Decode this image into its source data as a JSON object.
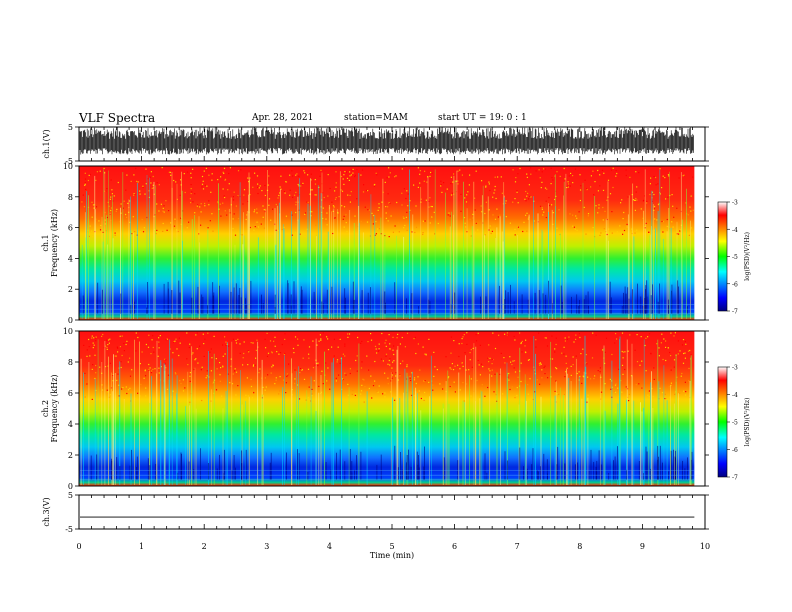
{
  "header": {
    "title": "VLF Spectra",
    "date": "Apr. 28, 2021",
    "station": "station=MAM",
    "start": "start UT =  19: 0  : 1"
  },
  "chart_data": [
    {
      "type": "line",
      "name": "ch1-waveform",
      "ylabel": "ch.1(V)",
      "ylim": [
        -5,
        5
      ],
      "yticks": [
        "5",
        "-5"
      ],
      "xlim": [
        0,
        10
      ],
      "data_end_min": 9.83,
      "amplitude": "noise spanning approx. -3 to 5 V"
    },
    {
      "type": "heatmap",
      "name": "ch1-spectrogram",
      "ylabel_top": "ch.1",
      "ylabel": "Frequency (kHz)",
      "ylim": [
        0,
        10
      ],
      "yticks": [
        "0",
        "2",
        "4",
        "6",
        "8",
        "10"
      ],
      "xlim": [
        0,
        10
      ],
      "data_end_min": 9.83,
      "colorbar": {
        "label": "log(PSD)(V²/Hz)",
        "range": [
          -7,
          -3
        ],
        "ticks": [
          "-3",
          "-4",
          "-5",
          "-6",
          "-7"
        ]
      }
    },
    {
      "type": "heatmap",
      "name": "ch2-spectrogram",
      "ylabel_top": "ch.2",
      "ylabel": "Frequency (kHz)",
      "ylim": [
        0,
        10
      ],
      "yticks": [
        "0",
        "2",
        "4",
        "6",
        "8",
        "10"
      ],
      "xlim": [
        0,
        10
      ],
      "data_end_min": 9.83,
      "colorbar": {
        "label": "log(PSD)(V²/Hz)",
        "range": [
          -7,
          -3
        ],
        "ticks": [
          "-3",
          "-4",
          "-5",
          "-6",
          "-7"
        ]
      }
    },
    {
      "type": "line",
      "name": "ch3-waveform",
      "ylabel": "ch.3(V)",
      "ylim": [
        -5,
        5
      ],
      "yticks": [
        "5",
        "-5"
      ],
      "xlim": [
        0,
        10
      ],
      "data_end_min": 9.83,
      "value": -1.5,
      "xlabel": "Time (min)",
      "xticks": [
        "0",
        "1",
        "2",
        "3",
        "4",
        "5",
        "6",
        "7",
        "8",
        "9",
        "10"
      ]
    }
  ]
}
